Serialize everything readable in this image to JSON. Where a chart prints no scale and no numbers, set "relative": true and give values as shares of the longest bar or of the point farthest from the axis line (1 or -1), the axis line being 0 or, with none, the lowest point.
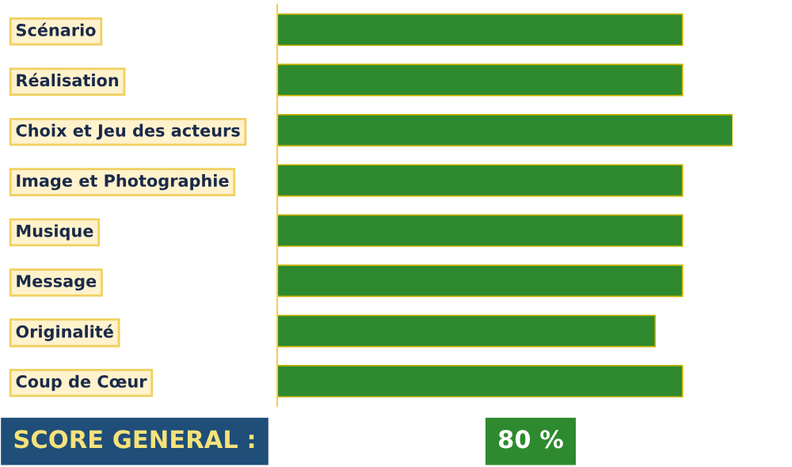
{
  "chart_data": {
    "type": "bar",
    "orientation": "horizontal",
    "relative": true,
    "categories": [
      "Scénario",
      "Réalisation",
      "Choix et Jeu des acteurs",
      "Image et Photographie",
      "Musique",
      "Message",
      "Originalité",
      "Coup de Cœur"
    ],
    "values": [
      0.89,
      0.89,
      1,
      0.89,
      0.89,
      0.89,
      0.83,
      0.89
    ],
    "color": "#2e8a2e",
    "annotations": [
      "SCORE GENERAL :",
      "80 %"
    ]
  }
}
